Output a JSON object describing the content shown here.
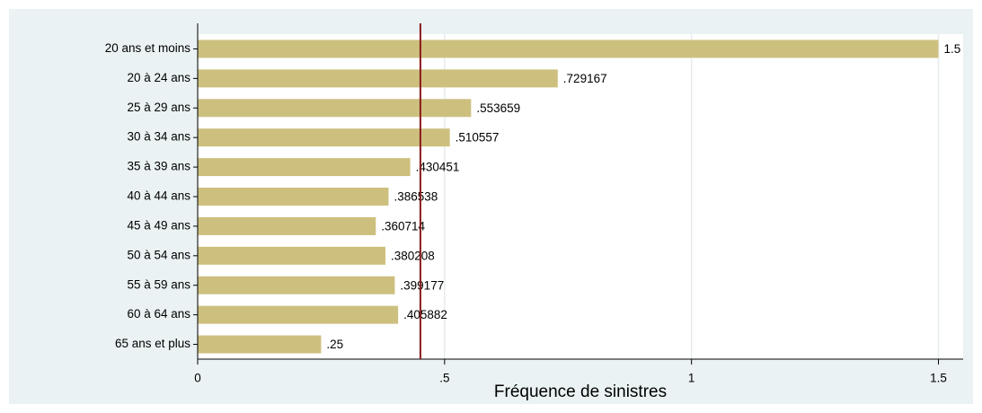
{
  "chart_data": {
    "type": "hbar",
    "categories": [
      "20 ans et moins",
      "20 à 24 ans",
      "25 à 29 ans",
      "30 à 34 ans",
      "35 à 39 ans",
      "40 à 44 ans",
      "45 à 49 ans",
      "50 à 54 ans",
      "55 à 59 ans",
      "60 à 64 ans",
      "65 ans et plus"
    ],
    "values": [
      1.5,
      0.729167,
      0.553659,
      0.510557,
      0.430451,
      0.386538,
      0.360714,
      0.380208,
      0.399177,
      0.405882,
      0.25
    ],
    "value_labels": [
      "1.5",
      ".729167",
      ".553659",
      ".510557",
      ".430451",
      ".386538",
      ".360714",
      ".380208",
      ".399177",
      ".405882",
      ".25"
    ],
    "color": "#cdc07f",
    "xlabel": "Fréquence de sinistres",
    "xlim": [
      0,
      1.55
    ],
    "xticks": [
      0,
      {
        "value": 0.5,
        "label": ".5"
      },
      1,
      1.5
    ],
    "grid": true,
    "reference_line": 0.451,
    "reference_color": "#8b1a1a"
  }
}
